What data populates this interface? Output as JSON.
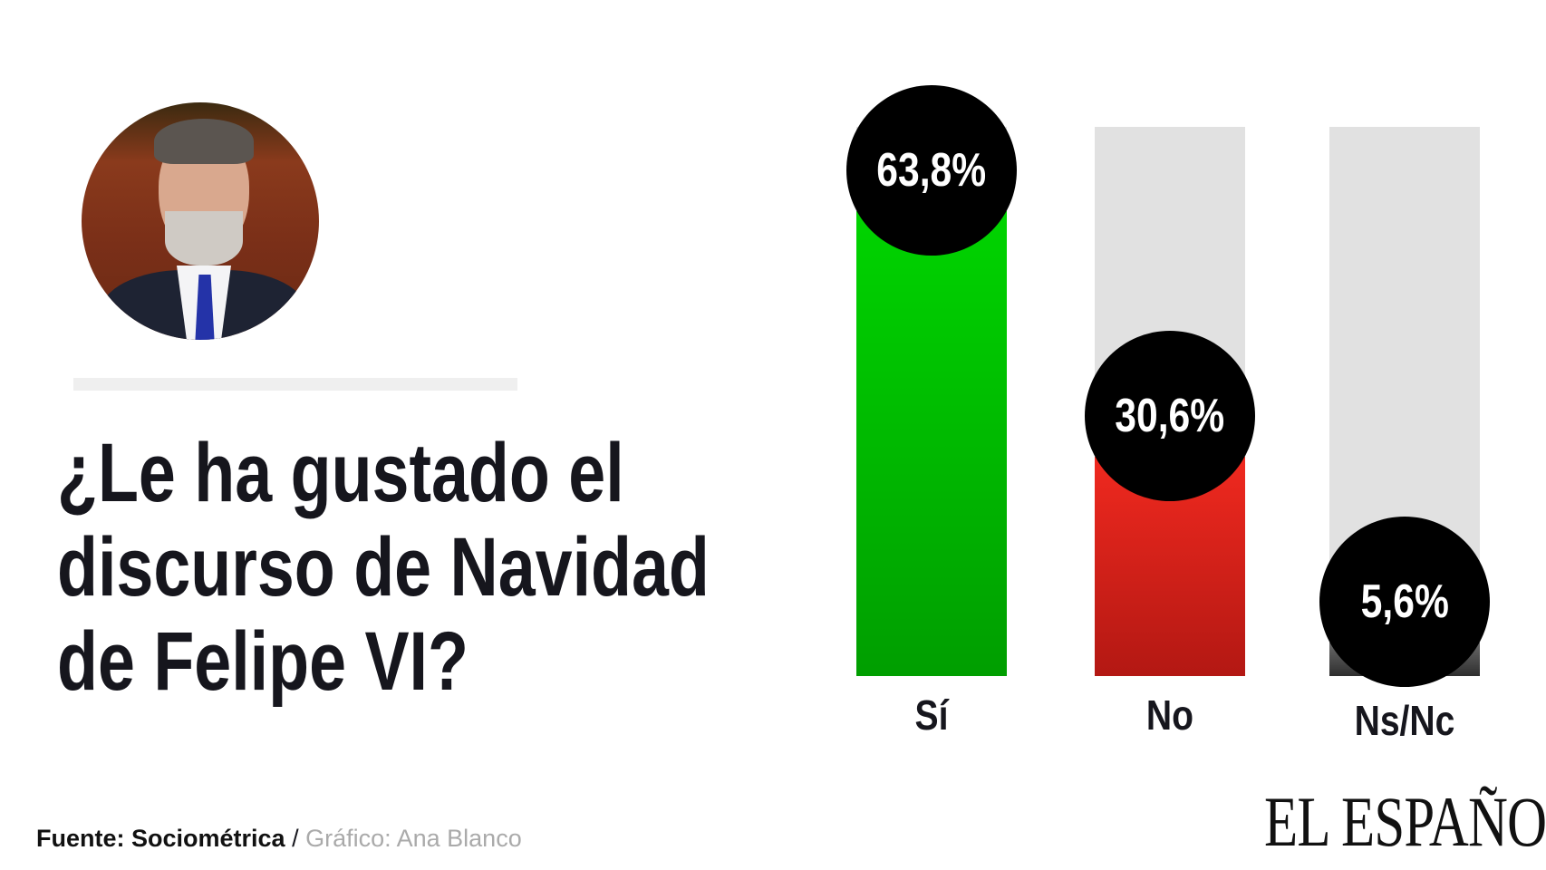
{
  "title": "¿Le ha gustado el discurso de Navidad de Felipe VI?",
  "title_lines": [
    "¿Le ha gustado el",
    "discurso de Navidad",
    "de Felipe VI?"
  ],
  "footer": {
    "source": "Fuente: Sociométrica",
    "separator": " / ",
    "credit": "Gráfico: Ana Blanco"
  },
  "logo": "EL ESPAÑOL",
  "chart_data": {
    "type": "bar",
    "title": "¿Le ha gustado el discurso de Navidad de Felipe VI?",
    "categories": [
      "Sí",
      "No",
      "Ns/Nc"
    ],
    "values": [
      63.8,
      30.6,
      5.6
    ],
    "labels": [
      "63,8%",
      "30,6%",
      "5,6%"
    ],
    "unit": "%",
    "ylim": [
      0,
      100
    ],
    "grid": false,
    "colors": {
      "Sí": [
        "#00d400",
        "#009e00"
      ],
      "No": [
        "#f0291f",
        "#b31813"
      ],
      "Ns/Nc": [
        "#6a6a6a",
        "#2e2e2e"
      ],
      "track": "#e1e1e1",
      "bubble": "#000000"
    }
  }
}
